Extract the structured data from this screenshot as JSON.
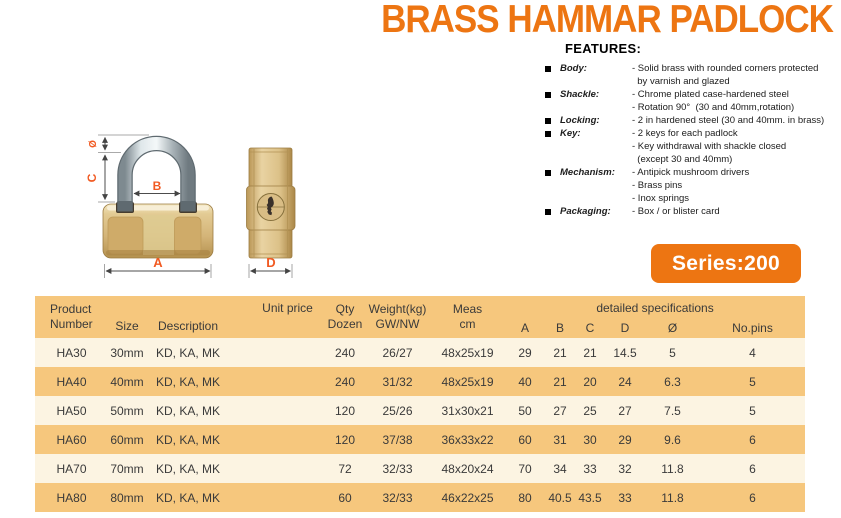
{
  "page": {
    "title": "BRASS HAMMAR PADLOCK"
  },
  "features": {
    "heading": "FEATURES:",
    "items": [
      {
        "label": "Body:",
        "lines": [
          "- Solid brass with rounded corners protected",
          "  by varnish and glazed"
        ]
      },
      {
        "label": "Shackle:",
        "lines": [
          "- Chrome plated case-hardened steel",
          "- Rotation 90°  (30 and 40mm,rotation)"
        ]
      },
      {
        "label": "Locking:",
        "lines": [
          "- 2 in hardened steel (30 and 40mm. in brass)"
        ]
      },
      {
        "label": "Key:",
        "lines": [
          "- 2 keys for each padlock",
          "- Key withdrawal with shackle closed",
          "  (except 30 and 40mm)"
        ]
      },
      {
        "label": "Mechanism:",
        "lines": [
          "- Antipick mushroom drivers",
          "- Brass pins",
          "- Inox springs"
        ]
      },
      {
        "label": "Packaging:",
        "lines": [
          "- Box / or blister card"
        ]
      }
    ]
  },
  "series_badge": "Series:200",
  "diagram": {
    "labels": {
      "shackle_diameter": "Ø",
      "shackle_height": "C",
      "inner_width": "B",
      "body_width": "A",
      "body_depth": "D"
    }
  },
  "table": {
    "header": {
      "product": [
        "Product",
        "Number"
      ],
      "size": "Size",
      "description": "Description",
      "unit_price": "Unit price",
      "qty": [
        "Qty",
        "Dozen"
      ],
      "weight": [
        "Weight(kg)",
        "GW/NW"
      ],
      "meas": [
        "Meas",
        "cm"
      ],
      "detailed": "detailed specifications",
      "spec_cols": [
        "A",
        "B",
        "C",
        "D",
        "Ø"
      ],
      "no_pins": "No.pins"
    },
    "rows": [
      [
        "HA30",
        "30mm",
        "KD, KA, MK",
        "",
        "240",
        "26/27",
        "48x25x19",
        "29",
        "21",
        "21",
        "14.5",
        "5",
        "4"
      ],
      [
        "HA40",
        "40mm",
        "KD, KA, MK",
        "",
        "240",
        "31/32",
        "48x25x19",
        "40",
        "21",
        "20",
        "24",
        "6.3",
        "5"
      ],
      [
        "HA50",
        "50mm",
        "KD, KA, MK",
        "",
        "120",
        "25/26",
        "31x30x21",
        "50",
        "27",
        "25",
        "27",
        "7.5",
        "5"
      ],
      [
        "HA60",
        "60mm",
        "KD, KA, MK",
        "",
        "120",
        "37/38",
        "36x33x22",
        "60",
        "31",
        "30",
        "29",
        "9.6",
        "6"
      ],
      [
        "HA70",
        "70mm",
        "KD, KA, MK",
        "",
        "72",
        "32/33",
        "48x20x24",
        "70",
        "34",
        "33",
        "32",
        "11.8",
        "6"
      ],
      [
        "HA80",
        "80mm",
        "KD, KA, MK",
        "",
        "60",
        "32/33",
        "46x22x25",
        "80",
        "40.5",
        "43.5",
        "33",
        "11.8",
        "6"
      ]
    ]
  },
  "colors": {
    "accent_orange": "#ed7512",
    "diagram_label_orange": "#f15a22",
    "table_header_bg": "#f6c77d",
    "table_row_bg": "#fcf4e2",
    "table_row_alt_bg": "#f6c77d",
    "badge_text": "#ffffff"
  }
}
